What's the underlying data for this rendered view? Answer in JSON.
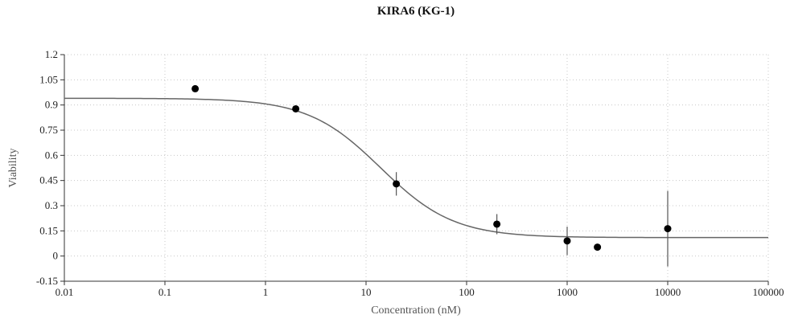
{
  "chart_data": {
    "type": "scatter",
    "title": "KIRA6 (KG-1)",
    "xlabel": "Concentration (nM)",
    "ylabel": "Viability",
    "x_scale": "log",
    "xlim": [
      0.01,
      100000
    ],
    "ylim": [
      -0.15,
      1.2
    ],
    "x_ticks": [
      "0.01",
      "0.1",
      "1",
      "10",
      "100",
      "1000",
      "10000",
      "100000"
    ],
    "y_ticks": [
      "-0.15",
      "0",
      "0.15",
      "0.3",
      "0.45",
      "0.6",
      "0.75",
      "0.9",
      "1.05",
      "1.2"
    ],
    "grid": true,
    "points": [
      {
        "x": 0.2,
        "y": 0.997,
        "err": 0
      },
      {
        "x": 2,
        "y": 0.877,
        "err": 0.015
      },
      {
        "x": 20,
        "y": 0.43,
        "err": 0.07
      },
      {
        "x": 200,
        "y": 0.19,
        "err": 0.06
      },
      {
        "x": 1000,
        "y": 0.09,
        "err": 0.085
      },
      {
        "x": 2000,
        "y": 0.053,
        "err": 0
      },
      {
        "x": 10000,
        "y": 0.163,
        "err": 0.225
      }
    ],
    "fit": {
      "top": 0.94,
      "bottom": 0.11,
      "ic50": 14,
      "hill": 1.2
    }
  }
}
